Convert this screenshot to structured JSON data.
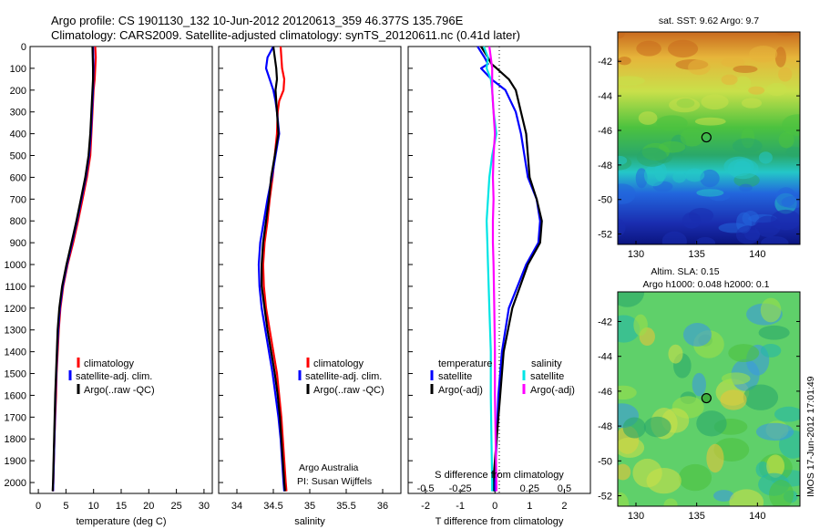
{
  "header": {
    "line1": "Argo profile: CS 1901130_132 10-Jun-2012 20120613_359 46.377S 135.796E",
    "line2": "Climatology: CARS2009. Satellite-adjusted climatology: synTS_20120611.nc (0.41d later)"
  },
  "colors": {
    "climatology": "#ff0000",
    "satellite": "#0000ff",
    "argo": "#000000",
    "sal_satellite": "#00e5e5",
    "sal_argo": "#ff00ff"
  },
  "depth_ticks": [
    "0",
    "100",
    "200",
    "300",
    "400",
    "500",
    "600",
    "700",
    "800",
    "900",
    "1000",
    "1100",
    "1200",
    "1300",
    "1400",
    "1500",
    "1600",
    "1700",
    "1800",
    "1900",
    "2000"
  ],
  "chart_data": [
    {
      "id": "temperature",
      "type": "line",
      "xlabel": "temperature (deg C)",
      "xlim": [
        -1.5,
        31.5
      ],
      "ylim": [
        2050,
        0
      ],
      "x_ticks": [
        "0",
        "5",
        "10",
        "15",
        "20",
        "25",
        "30"
      ],
      "legend": [
        "climatology",
        "satellite-adj. clim.",
        "Argo(..raw -QC)"
      ],
      "series": [
        {
          "name": "climatology",
          "key": "climatology",
          "depth": [
            0,
            50,
            100,
            150,
            200,
            300,
            400,
            500,
            600,
            700,
            800,
            900,
            1000,
            1100,
            1200,
            1300,
            1400,
            1500,
            1600,
            1700,
            1800,
            1900,
            2000,
            2040
          ],
          "values": [
            10.3,
            10.4,
            10.3,
            10.2,
            10.0,
            9.8,
            9.6,
            9.4,
            8.8,
            8.0,
            7.2,
            6.3,
            5.3,
            4.5,
            4.0,
            3.7,
            3.5,
            3.3,
            3.2,
            3.05,
            2.9,
            2.8,
            2.7,
            2.65
          ]
        },
        {
          "name": "satellite-adj. clim.",
          "key": "satellite",
          "depth": [
            0,
            50,
            100,
            150,
            200,
            300,
            400,
            500,
            600,
            700,
            800,
            900,
            1000,
            1100,
            1200,
            1300,
            1400,
            1500,
            1600,
            1700,
            1800,
            1900,
            2000,
            2040
          ],
          "values": [
            9.9,
            9.95,
            10.0,
            9.95,
            9.9,
            9.7,
            9.5,
            9.2,
            8.6,
            7.8,
            7.0,
            6.1,
            5.2,
            4.4,
            3.9,
            3.6,
            3.4,
            3.25,
            3.1,
            3.0,
            2.9,
            2.8,
            2.7,
            2.65
          ]
        },
        {
          "name": "Argo(..raw -QC)",
          "key": "argo",
          "depth": [
            0,
            50,
            100,
            150,
            200,
            300,
            400,
            500,
            600,
            700,
            800,
            900,
            1000,
            1100,
            1200,
            1300,
            1400,
            1500,
            1600,
            1700,
            1800,
            1900,
            2000,
            2040
          ],
          "values": [
            9.8,
            9.85,
            9.9,
            9.9,
            9.8,
            9.6,
            9.4,
            9.1,
            8.5,
            7.7,
            6.9,
            6.0,
            5.1,
            4.3,
            3.8,
            3.5,
            3.35,
            3.2,
            3.05,
            2.95,
            2.85,
            2.75,
            2.65,
            2.6
          ]
        }
      ]
    },
    {
      "id": "salinity",
      "type": "line",
      "xlabel": "salinity",
      "xlim": [
        33.75,
        36.25
      ],
      "ylim": [
        2050,
        0
      ],
      "x_ticks": [
        "34",
        "34.5",
        "35",
        "35.5",
        "36"
      ],
      "legend": [
        "climatology",
        "satellite-adj. clim.",
        "Argo(..raw -QC)"
      ],
      "annotation": [
        "Argo Australia",
        "PI: Susan Wijffels"
      ],
      "series": [
        {
          "name": "climatology",
          "key": "climatology",
          "depth": [
            0,
            50,
            100,
            150,
            200,
            250,
            300,
            400,
            500,
            600,
            700,
            800,
            900,
            1000,
            1100,
            1200,
            1300,
            1400,
            1500,
            1600,
            1700,
            1800,
            1900,
            2000,
            2040
          ],
          "values": [
            34.6,
            34.61,
            34.62,
            34.65,
            34.64,
            34.58,
            34.56,
            34.55,
            34.52,
            34.49,
            34.45,
            34.42,
            34.38,
            34.36,
            34.37,
            34.4,
            34.45,
            34.5,
            34.55,
            34.58,
            34.61,
            34.63,
            34.65,
            34.67,
            34.68
          ]
        },
        {
          "name": "satellite-adj. clim.",
          "key": "satellite",
          "depth": [
            0,
            50,
            100,
            150,
            200,
            250,
            300,
            400,
            500,
            600,
            700,
            800,
            900,
            1000,
            1100,
            1200,
            1300,
            1400,
            1500,
            1600,
            1700,
            1800,
            1900,
            2000,
            2040
          ],
          "values": [
            34.5,
            34.42,
            34.4,
            34.45,
            34.5,
            34.53,
            34.55,
            34.58,
            34.53,
            34.48,
            34.42,
            34.37,
            34.32,
            34.3,
            34.31,
            34.34,
            34.39,
            34.44,
            34.49,
            34.53,
            34.57,
            34.6,
            34.62,
            34.64,
            34.65
          ]
        },
        {
          "name": "Argo(..raw -QC)",
          "key": "argo",
          "depth": [
            0,
            50,
            100,
            150,
            200,
            250,
            300,
            400,
            500,
            600,
            700,
            800,
            900,
            1000,
            1100,
            1200,
            1300,
            1400,
            1500,
            1600,
            1700,
            1800,
            1900,
            2000,
            2040
          ],
          "values": [
            34.5,
            34.52,
            34.54,
            34.55,
            34.53,
            34.54,
            34.55,
            34.57,
            34.52,
            34.47,
            34.44,
            34.4,
            34.36,
            34.34,
            34.34,
            34.38,
            34.42,
            34.47,
            34.52,
            34.56,
            34.59,
            34.61,
            34.63,
            34.65,
            34.66
          ]
        }
      ]
    },
    {
      "id": "difference",
      "type": "line",
      "xlabel": "T difference from climatology",
      "xlabel2": "S difference from climatology",
      "xlim": [
        -2.5,
        2.75
      ],
      "ylim": [
        2050,
        0
      ],
      "x_ticks": [
        "-2",
        "-1",
        "0",
        "1",
        "2"
      ],
      "x_ticks_s": [
        "-0.5",
        "-0.25",
        "0",
        "0.25",
        "0.5"
      ],
      "legend_groups": [
        {
          "title": "temperature",
          "items": [
            "satellite",
            "Argo(-adj)"
          ]
        },
        {
          "title": "salinity",
          "items": [
            "satellite",
            "Argo(-adj)"
          ]
        }
      ],
      "series": [
        {
          "name": "temperature satellite",
          "key": "satellite",
          "depth": [
            0,
            50,
            80,
            100,
            150,
            200,
            300,
            400,
            500,
            600,
            700,
            800,
            900,
            1000,
            1200,
            1400,
            1600,
            1800,
            2000,
            2040
          ],
          "values": [
            -0.5,
            -0.3,
            -0.2,
            -0.4,
            -0.1,
            0.3,
            0.6,
            0.75,
            0.85,
            0.95,
            1.2,
            1.3,
            1.25,
            0.9,
            0.4,
            0.2,
            0.1,
            0.05,
            0.0,
            0.0
          ]
        },
        {
          "name": "temperature Argo(-adj)",
          "key": "argo",
          "depth": [
            0,
            50,
            80,
            100,
            150,
            200,
            300,
            400,
            500,
            600,
            700,
            800,
            900,
            1000,
            1200,
            1400,
            1600,
            1800,
            2000,
            2040
          ],
          "values": [
            -0.4,
            -0.2,
            -0.1,
            0.05,
            0.4,
            0.6,
            0.75,
            0.9,
            0.95,
            1.0,
            1.2,
            1.35,
            1.3,
            0.95,
            0.5,
            0.25,
            0.15,
            0.05,
            -0.05,
            -0.05
          ]
        },
        {
          "name": "salinity satellite",
          "key": "sal_satellite",
          "depth": [
            0,
            50,
            100,
            150,
            200,
            300,
            400,
            500,
            600,
            700,
            800,
            900,
            1000,
            1200,
            1400,
            1600,
            1800,
            2000,
            2040
          ],
          "values": [
            -0.08,
            -0.05,
            -0.06,
            -0.03,
            -0.02,
            -0.01,
            0.01,
            -0.02,
            -0.04,
            -0.05,
            -0.06,
            -0.055,
            -0.05,
            -0.04,
            -0.03,
            -0.03,
            -0.025,
            -0.02,
            -0.02
          ]
        },
        {
          "name": "salinity Argo(-adj)",
          "key": "sal_argo",
          "depth": [
            0,
            50,
            100,
            150,
            200,
            300,
            400,
            500,
            600,
            700,
            800,
            900,
            1000,
            1200,
            1400,
            1600,
            1800,
            2000,
            2040
          ],
          "values": [
            -0.04,
            -0.03,
            -0.02,
            -0.02,
            -0.02,
            -0.01,
            0.0,
            -0.01,
            -0.015,
            -0.01,
            -0.015,
            -0.015,
            -0.01,
            -0.005,
            0.0,
            0.0,
            0.005,
            0.01,
            0.01
          ]
        }
      ]
    },
    {
      "id": "sst-map",
      "type": "heatmap",
      "title": "sat. SST: 9.62 Argo: 9.7",
      "x_ticks": [
        "130",
        "135",
        "140"
      ],
      "y_ticks": [
        "-42",
        "-44",
        "-46",
        "-48",
        "-50",
        "-52"
      ],
      "xlim": [
        128.5,
        143.5
      ],
      "ylim": [
        -52.6,
        -40.3
      ],
      "marker": {
        "lon": 135.8,
        "lat": -46.4
      }
    },
    {
      "id": "sla-map",
      "type": "heatmap",
      "title": "Altim. SLA: 0.15",
      "subtitle": "Argo h1000: 0.048 h2000: 0.1",
      "x_ticks": [
        "130",
        "135",
        "140"
      ],
      "y_ticks": [
        "-42",
        "-44",
        "-46",
        "-48",
        "-50",
        "-52"
      ],
      "xlim": [
        128.5,
        143.5
      ],
      "ylim": [
        -52.6,
        -40.3
      ],
      "marker": {
        "lon": 135.8,
        "lat": -46.4
      }
    }
  ],
  "credit": "IMOS 17-Jun-2012 17:01:49"
}
